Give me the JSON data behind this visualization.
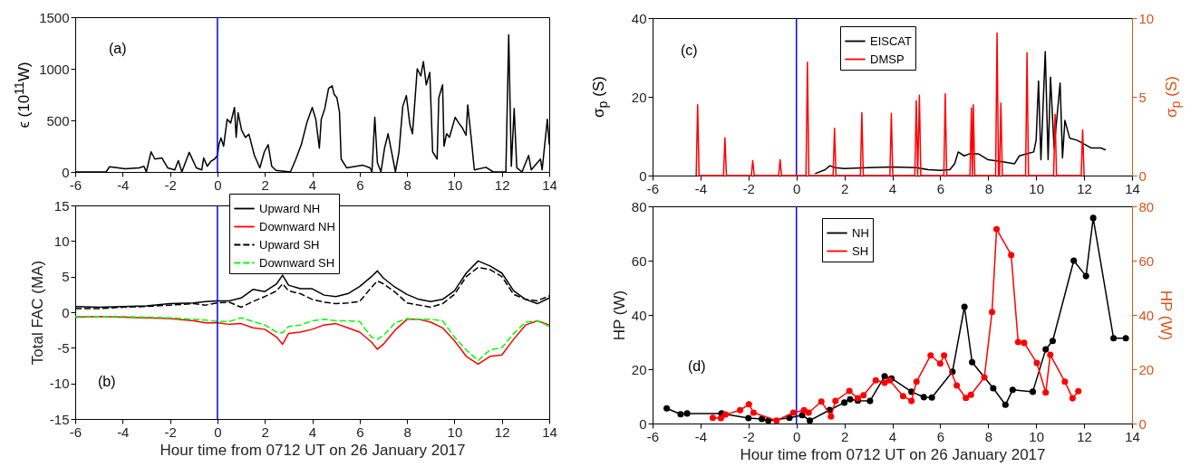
{
  "chart_data": [
    {
      "type": "line",
      "ylabel": "ϵ (10$^{11}$W)",
      "annotations": [
        "(a)"
      ],
      "xlim": [
        -6,
        14
      ],
      "xticks": [
        -6,
        -4,
        -2,
        0,
        2,
        4,
        6,
        8,
        10,
        12,
        14
      ],
      "ylim": [
        0,
        1500
      ],
      "yticks": [
        0,
        500,
        1000,
        1500
      ],
      "color": "#000000",
      "ref_lines": [
        {
          "axis": "x",
          "value": 0,
          "color": "#0000ff"
        }
      ],
      "x": [
        -6,
        -4.7,
        -4.55,
        -3.9,
        -3.3,
        -3.1,
        -3.0,
        -2.8,
        -2.64,
        -2.34,
        -2.1,
        -1.8,
        -1.65,
        -1.5,
        -1.19,
        -0.89,
        -0.66,
        -0.58,
        -0.43,
        -0.27,
        -0.12,
        0,
        0.06,
        0.15,
        0.26,
        0.41,
        0.56,
        0.72,
        0.79,
        0.87,
        1.02,
        1.18,
        1.33,
        1.56,
        1.79,
        1.98,
        2.14,
        2.29,
        2.47,
        3.08,
        3.31,
        3.54,
        3.77,
        4.0,
        4.15,
        4.3,
        4.38,
        4.53,
        4.69,
        4.84,
        4.92,
        5.04,
        5.15,
        5.22,
        5.45,
        6.14,
        6.44,
        6.52,
        6.64,
        6.75,
        6.9,
        7.05,
        7.2,
        7.36,
        7.51,
        7.66,
        7.82,
        7.97,
        8.12,
        8.23,
        8.32,
        8.43,
        8.58,
        8.69,
        8.81,
        8.96,
        9.08,
        9.27,
        9.34,
        9.5,
        9.56,
        9.67,
        9.79,
        10.03,
        10.18,
        10.34,
        10.49,
        10.56,
        10.72,
        10.84,
        11.33,
        11.64,
        12.17,
        12.29,
        12.4,
        12.52,
        12.63,
        12.85,
        13.13,
        13.24,
        13.63,
        13.7,
        13.92,
        14
      ],
      "values": [
        0,
        0,
        50,
        30,
        40,
        55,
        0,
        195,
        125,
        135,
        40,
        20,
        110,
        0,
        190,
        40,
        20,
        135,
        55,
        105,
        125,
        160,
        265,
        330,
        250,
        510,
        475,
        625,
        335,
        575,
        405,
        335,
        365,
        160,
        40,
        195,
        265,
        55,
        15,
        0,
        125,
        265,
        475,
        625,
        510,
        230,
        510,
        615,
        810,
        835,
        755,
        720,
        580,
        125,
        40,
        65,
        40,
        0,
        530,
        90,
        0,
        230,
        370,
        180,
        0,
        195,
        635,
        740,
        460,
        370,
        650,
        1000,
        930,
        1070,
        845,
        965,
        195,
        125,
        720,
        845,
        250,
        370,
        335,
        530,
        475,
        425,
        355,
        650,
        300,
        20,
        45,
        0,
        0,
        1330,
        55,
        615,
        40,
        0,
        160,
        20,
        125,
        20,
        510,
        265
      ]
    },
    {
      "type": "line",
      "xlabel": "Hour time from 0712 UT on 26 January 2017",
      "ylabel": "Total FAC (MA)",
      "annotations": [
        "(b)"
      ],
      "xlim": [
        -6,
        14
      ],
      "xticks": [
        -6,
        -4,
        -2,
        0,
        2,
        4,
        6,
        8,
        10,
        12,
        14
      ],
      "ylim": [
        -15,
        15
      ],
      "yticks": [
        -15,
        -10,
        -5,
        0,
        5,
        10,
        15
      ],
      "legend": "top",
      "ref_lines": [
        {
          "axis": "x",
          "value": 0,
          "color": "#0000ff"
        }
      ],
      "x": [
        -6,
        -5,
        -4,
        -3,
        -2,
        -1,
        -0.5,
        0,
        0.5,
        1,
        1.5,
        2,
        2.5,
        2.75,
        3,
        3.5,
        4,
        4.5,
        5,
        5.5,
        6,
        6.5,
        6.75,
        7,
        7.5,
        8,
        8.5,
        9,
        9.5,
        10,
        10.5,
        11,
        11.5,
        12,
        12.5,
        13,
        13.5,
        14
      ],
      "series": [
        {
          "name": "Upward NH",
          "color": "#000000",
          "line_style": "solid",
          "values": [
            0.8,
            0.7,
            0.8,
            0.9,
            1.2,
            1.3,
            1.5,
            1.6,
            1.6,
            2.0,
            3.2,
            2.9,
            4.0,
            5.2,
            3.8,
            3.3,
            3.3,
            2.4,
            2.2,
            2.6,
            3.6,
            5.0,
            5.8,
            4.8,
            3.5,
            2.5,
            1.8,
            1.5,
            1.8,
            3.0,
            5.5,
            7.2,
            6.5,
            5.5,
            3.0,
            1.8,
            1.2,
            2.0
          ]
        },
        {
          "name": "Downward NH",
          "color": "#ff0000",
          "line_style": "solid",
          "values": [
            -0.7,
            -0.6,
            -0.7,
            -0.8,
            -0.9,
            -1.2,
            -1.5,
            -1.5,
            -1.7,
            -1.6,
            -2.2,
            -2.4,
            -3.5,
            -4.5,
            -3.0,
            -2.8,
            -2.4,
            -1.8,
            -1.6,
            -2.2,
            -2.8,
            -4.2,
            -5.2,
            -4.5,
            -2.5,
            -1.0,
            -1.0,
            -1.4,
            -2.2,
            -4.0,
            -6.2,
            -7.3,
            -6.2,
            -6.0,
            -3.8,
            -1.8,
            -1.2,
            -1.8
          ]
        },
        {
          "name": "Upward SH",
          "color": "#000000",
          "line_style": "dashed",
          "values": [
            0.5,
            0.5,
            0.7,
            0.8,
            1.0,
            1.2,
            1.0,
            1.3,
            1.4,
            0.7,
            1.5,
            2.2,
            3.0,
            4.0,
            3.0,
            2.6,
            1.8,
            1.4,
            1.2,
            1.3,
            1.5,
            3.5,
            4.4,
            4.0,
            2.8,
            1.3,
            1.0,
            0.7,
            1.2,
            2.5,
            5.0,
            6.3,
            6.0,
            5.0,
            2.5,
            1.8,
            1.6,
            2.3
          ]
        },
        {
          "name": "Downward SH",
          "color": "#00ff00",
          "line_style": "dashed",
          "values": [
            -0.6,
            -0.6,
            -0.6,
            -0.7,
            -0.8,
            -1.0,
            -1.1,
            -1.3,
            -1.3,
            -0.8,
            -1.3,
            -1.8,
            -2.8,
            -2.9,
            -2.0,
            -1.8,
            -1.2,
            -1.0,
            -1.2,
            -1.2,
            -1.3,
            -3.5,
            -3.8,
            -3.3,
            -1.5,
            -0.9,
            -1.0,
            -1.0,
            -1.2,
            -3.5,
            -5.3,
            -6.8,
            -5.3,
            -5.0,
            -3.0,
            -1.4,
            -1.2,
            -2.0
          ]
        }
      ]
    },
    {
      "type": "line",
      "ylabel": "σ$_{p}$ (S)",
      "y2label": "σ$_{p}$ (S)",
      "annotations": [
        "(c)"
      ],
      "xlim": [
        -6,
        14
      ],
      "xticks": [
        -6,
        -4,
        -2,
        0,
        2,
        4,
        6,
        8,
        10,
        12,
        14
      ],
      "ylim": [
        0,
        40
      ],
      "yticks": [
        0,
        20,
        40
      ],
      "y2lim": [
        0,
        10
      ],
      "y2ticks": [
        0,
        5,
        10
      ],
      "legend": "top",
      "ref_lines": [
        {
          "axis": "x",
          "value": 0,
          "color": "#0000ff"
        }
      ],
      "series": [
        {
          "name": "EISCAT",
          "color": "#000000",
          "axis": "y",
          "x": [
            0.78,
            1.2,
            1.4,
            1.6,
            2,
            3,
            4,
            5,
            5.5,
            6,
            6.4,
            6.6,
            6.75,
            7,
            7.2,
            7.6,
            8,
            8.6,
            9.1,
            9.3,
            9.6,
            9.9,
            10.0,
            10.1,
            10.2,
            10.38,
            10.5,
            10.6,
            10.75,
            11.0,
            11.1,
            11.2,
            11.4,
            11.7,
            12,
            12.3,
            12.7,
            12.9
          ],
          "values": [
            0.5,
            1.5,
            2.5,
            2.0,
            1.8,
            2.0,
            2.2,
            2.0,
            1.5,
            1.3,
            1.5,
            3.0,
            6.0,
            5.0,
            5.5,
            5.5,
            4.0,
            3.5,
            3.0,
            5.0,
            5.5,
            6.0,
            9,
            24,
            4,
            31.5,
            4,
            25,
            7,
            23.5,
            4.5,
            14,
            9.5,
            9,
            8,
            7,
            7,
            6.5
          ]
        },
        {
          "name": "DMSP",
          "color": "#ff0000",
          "axis": "y2",
          "x": [
            -4.18,
            -4.12,
            -4.06,
            -3.04,
            -2.98,
            -2.92,
            -1.88,
            -1.82,
            -1.76,
            -0.74,
            -0.68,
            -0.62,
            0.4,
            0.46,
            0.52,
            1.53,
            1.59,
            1.65,
            2.67,
            2.73,
            2.79,
            3.9,
            3.96,
            4.02,
            4.94,
            5.0,
            5.06,
            5.13,
            5.19,
            6.15,
            6.21,
            6.27,
            7.24,
            7.3,
            7.34,
            7.38,
            7.44,
            8.31,
            8.37,
            8.43,
            8.47,
            8.53,
            8.59,
            9.56,
            9.62,
            9.68,
            10.73,
            10.79,
            10.85,
            11.88,
            11.94,
            12.0
          ],
          "values": [
            0,
            4.5,
            0,
            0,
            2.4,
            0,
            0,
            0.95,
            0,
            0,
            1.0,
            0,
            0,
            7.2,
            0,
            0,
            3.0,
            0,
            0,
            4.0,
            0,
            0,
            3.95,
            0,
            0,
            4.75,
            0,
            5.1,
            0,
            0,
            5.2,
            0,
            0,
            4.3,
            0,
            4.5,
            0,
            0,
            9.05,
            0,
            0,
            4.6,
            0,
            0,
            7.8,
            0,
            0,
            3.9,
            0,
            0,
            2.9,
            0
          ]
        }
      ]
    },
    {
      "type": "line",
      "xlabel": "Hour time from 0712 UT on 26 January 2017",
      "ylabel": "HP (W)",
      "y2label": "HP (W)",
      "annotations": [
        "(d)"
      ],
      "xlim": [
        -6,
        14
      ],
      "xticks": [
        -6,
        -4,
        -2,
        0,
        2,
        4,
        6,
        8,
        10,
        12,
        14
      ],
      "ylim": [
        0,
        80
      ],
      "yticks": [
        0,
        20,
        40,
        60,
        80
      ],
      "y2lim": [
        0,
        80
      ],
      "y2ticks": [
        0,
        20,
        40,
        60,
        80
      ],
      "legend": "top",
      "marker": "circle",
      "ref_lines": [
        {
          "axis": "x",
          "value": 0,
          "color": "#0000ff"
        }
      ],
      "series": [
        {
          "name": "NH",
          "color": "#000000",
          "axis": "y",
          "x": [
            -5.41,
            -4.83,
            -4.56,
            -3.12,
            -2.0,
            -1.44,
            -1.17,
            -0.29,
            0.24,
            0.56,
            1.39,
            2.0,
            2.24,
            2.56,
            3.07,
            3.68,
            3.97,
            4.8,
            5.31,
            5.65,
            6.51,
            7.01,
            7.33,
            8.21,
            8.72,
            9.02,
            9.86,
            10.4,
            10.69,
            11.57,
            12.08,
            12.38,
            13.23,
            13.74
          ],
          "values": [
            5.6,
            3.4,
            3.7,
            3.7,
            2.0,
            1.7,
            1.1,
            2.1,
            3.1,
            1.1,
            5.0,
            7.7,
            8.9,
            8.4,
            8.3,
            17.4,
            16.6,
            11.7,
            9.7,
            9.6,
            19.1,
            43,
            22.6,
            13.0,
            6.9,
            12.4,
            11.7,
            27.3,
            30.4,
            60,
            54.3,
            75.7,
            31.4,
            31.4
          ]
        },
        {
          "name": "SH",
          "color": "#ff0000",
          "axis": "y2",
          "x": [
            -3.49,
            -3.15,
            -2.96,
            -2.35,
            -1.98,
            -1.79,
            -0.83,
            -0.13,
            0.32,
            0.51,
            1.04,
            1.44,
            1.63,
            2.21,
            2.56,
            2.8,
            3.31,
            3.68,
            3.89,
            4.45,
            4.8,
            5.01,
            5.6,
            6.0,
            6.16,
            6.69,
            7.07,
            7.28,
            7.84,
            8.16,
            8.35,
            8.96,
            9.25,
            9.5,
            10.03,
            10.4,
            10.59,
            11.2,
            11.52,
            11.76
          ],
          "values": [
            2.1,
            2.0,
            3.3,
            4.9,
            7.1,
            4.0,
            1.1,
            4.0,
            4.9,
            4.0,
            8.1,
            2.6,
            8.3,
            12.0,
            9.3,
            10.4,
            15.9,
            15.0,
            15.9,
            10.1,
            8.3,
            15.4,
            25.1,
            22.1,
            25.1,
            14.0,
            9.4,
            10.6,
            17.0,
            41.1,
            71.6,
            62.1,
            30,
            29.7,
            22.3,
            11.4,
            25.3,
            15.4,
            9.3,
            11.9
          ]
        }
      ]
    }
  ]
}
